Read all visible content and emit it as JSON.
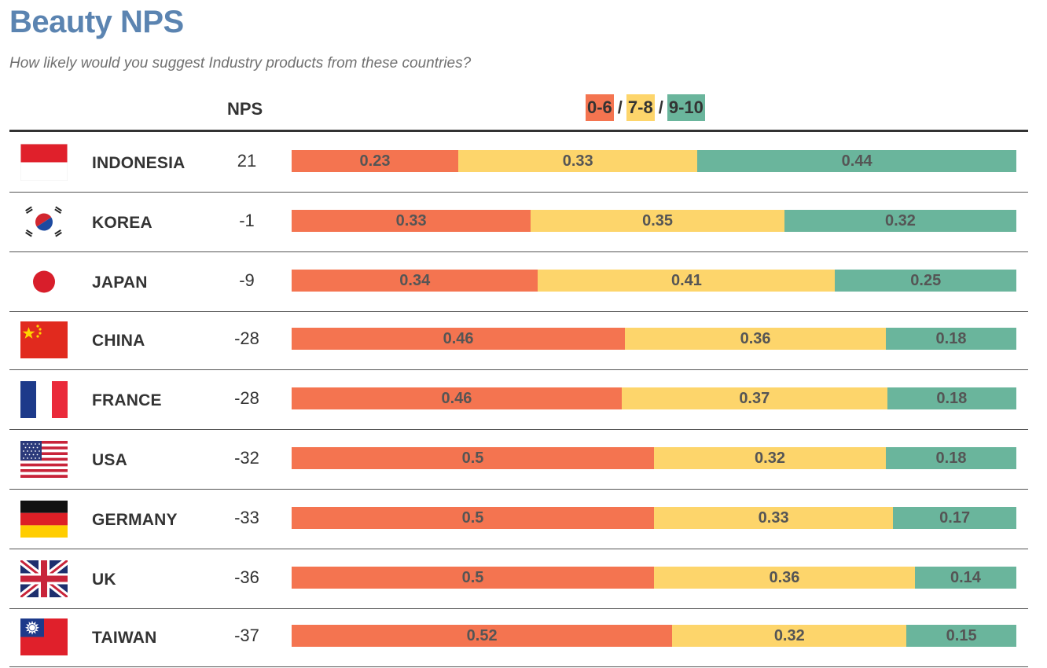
{
  "title": "Beauty NPS",
  "subtitle": "How likely would you suggest Industry products from these countries?",
  "nps_header": "NPS",
  "legend": [
    {
      "label": "0-6",
      "color": "#f47450"
    },
    {
      "label": "7-8",
      "color": "#fdd56b"
    },
    {
      "label": "9-10",
      "color": "#6ab59c"
    }
  ],
  "legend_separator": "/",
  "chart_data": {
    "type": "bar",
    "orientation": "horizontal",
    "stacked": true,
    "title": "Beauty NPS",
    "subtitle": "How likely would you suggest Industry products from these countries?",
    "categories": [
      "INDONESIA",
      "KOREA",
      "JAPAN",
      "CHINA",
      "FRANCE",
      "USA",
      "GERMANY",
      "UK",
      "TAIWAN"
    ],
    "nps": [
      "21",
      "-1",
      "-9",
      "-28",
      "-28",
      "-32",
      "-33",
      "-36",
      "-37"
    ],
    "series": [
      {
        "name": "0-6",
        "color": "#f47450",
        "values": [
          0.23,
          0.33,
          0.34,
          0.46,
          0.46,
          0.5,
          0.5,
          0.5,
          0.52
        ]
      },
      {
        "name": "7-8",
        "color": "#fdd56b",
        "values": [
          0.33,
          0.35,
          0.41,
          0.36,
          0.37,
          0.32,
          0.33,
          0.36,
          0.32
        ]
      },
      {
        "name": "9-10",
        "color": "#6ab59c",
        "values": [
          0.44,
          0.32,
          0.25,
          0.18,
          0.18,
          0.18,
          0.17,
          0.14,
          0.15
        ]
      }
    ],
    "legend_position": "top"
  }
}
